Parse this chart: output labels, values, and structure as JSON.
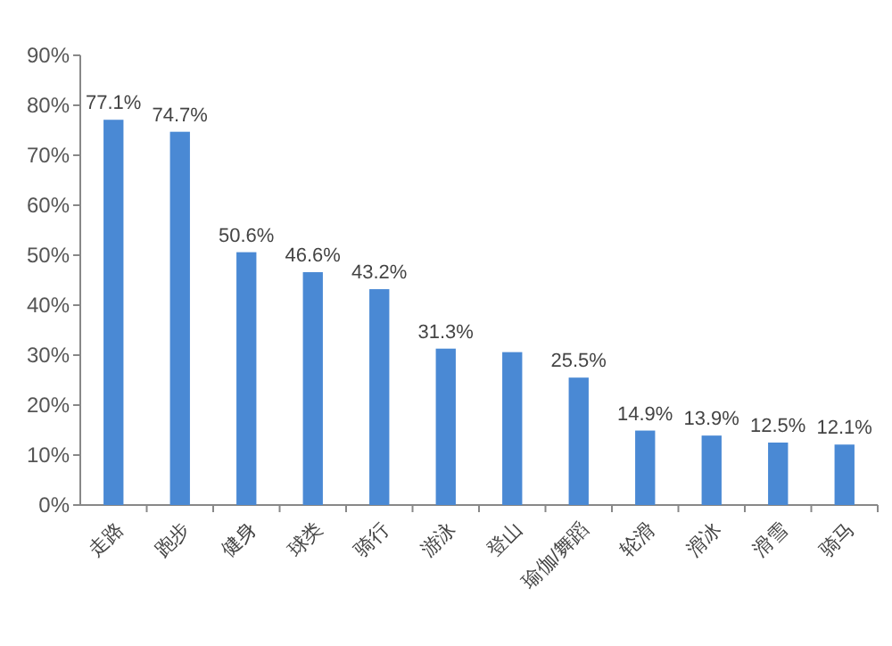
{
  "chart_data": {
    "type": "bar",
    "categories": [
      "走路",
      "跑步",
      "健身",
      "球类",
      "骑行",
      "游泳",
      "登山",
      "瑜伽/舞蹈",
      "轮滑",
      "滑冰",
      "滑雪",
      "骑马"
    ],
    "values": [
      77.1,
      74.7,
      50.6,
      46.6,
      43.2,
      31.3,
      30.6,
      25.5,
      14.9,
      13.9,
      12.5,
      12.1
    ],
    "value_labels": [
      "77.1%",
      "74.7%",
      "50.6%",
      "46.6%",
      "43.2%",
      "31.3%",
      null,
      "25.5%",
      "14.9%",
      "13.9%",
      "12.5%",
      "12.1%"
    ],
    "color": "#4a89d4",
    "ylim": [
      0,
      90
    ],
    "yticks": [
      {
        "value": 0,
        "label": "0%"
      },
      {
        "value": 10,
        "label": "10%"
      },
      {
        "value": 20,
        "label": "20%"
      },
      {
        "value": 30,
        "label": "30%"
      },
      {
        "value": 40,
        "label": "40%"
      },
      {
        "value": 50,
        "label": "50%"
      },
      {
        "value": 60,
        "label": "60%"
      },
      {
        "value": 70,
        "label": "70%"
      },
      {
        "value": 80,
        "label": "80%"
      },
      {
        "value": 90,
        "label": "90%"
      }
    ],
    "grid": false
  }
}
